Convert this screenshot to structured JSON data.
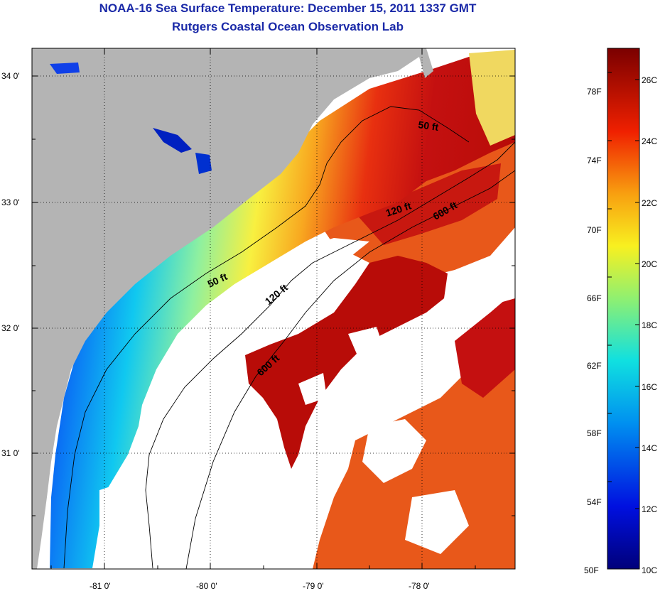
{
  "title_line1": "NOAA-16 Sea Surface Temperature:  December 15, 2011 1337 GMT",
  "title_line2": "Rutgers Coastal Ocean Observation Lab",
  "axes": {
    "lat_ticks": [
      "34 0'",
      "33 0'",
      "32 0'",
      "31 0'"
    ],
    "lon_ticks": [
      "-81 0'",
      "-80 0'",
      "-79 0'",
      "-78 0'"
    ]
  },
  "contour_labels": {
    "north_50": "50 ft",
    "north_120": "120 ft",
    "north_600": "600 ft",
    "south_50": "50 ft",
    "south_120": "120 ft",
    "south_600": "600 ft"
  },
  "colorbar": {
    "fahrenheit": [
      "78F",
      "74F",
      "70F",
      "66F",
      "62F",
      "58F",
      "54F",
      "50F"
    ],
    "celsius": [
      "26C",
      "24C",
      "22C",
      "20C",
      "18C",
      "16C",
      "14C",
      "12C",
      "10C"
    ]
  },
  "colors": {
    "land": "#b4b4b4",
    "no_data": "#ffffff",
    "title": "#1b2aa8"
  }
}
